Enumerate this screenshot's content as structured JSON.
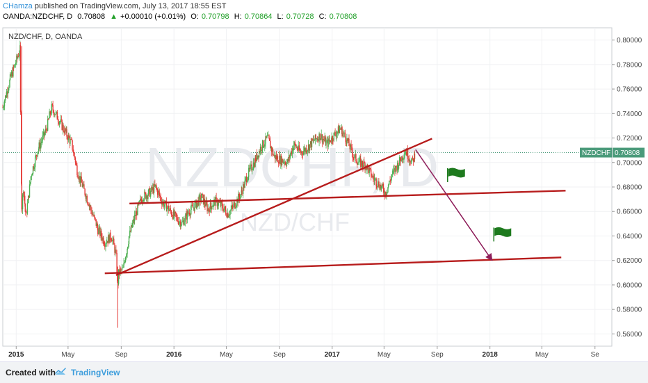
{
  "header": {
    "author": "CHamza",
    "published_text": "published on TradingView.com, July 13, 2017 18:55 EST",
    "symbol": "OANDA:NZDCHF, D",
    "last": "0.70808",
    "change_arrow": "▲",
    "change": "+0.00010 (+0.01%)",
    "o_label": "O:",
    "o": "0.70798",
    "h_label": "H:",
    "h": "0.70864",
    "l_label": "L:",
    "l": "0.70728",
    "c_label": "C:",
    "c": "0.70808"
  },
  "chart_title": "NZD/CHF, D, OANDA",
  "watermark": {
    "symbol": "NZDCHF, D",
    "pair": "NZD/CHF"
  },
  "price_tag": {
    "symbol": "NZDCHF",
    "value": "0.70808"
  },
  "footer": {
    "created_with": "Created with",
    "brand": "TradingView"
  },
  "colors": {
    "up": "#4caf50",
    "down": "#e53935",
    "trendline": "#b71c1c",
    "arrow": "#8e1e5a",
    "flag": "#1e7a1e",
    "price_tag_bg": "#4a9a7a"
  },
  "chart_data": {
    "type": "line",
    "title": "NZD/CHF, D, OANDA",
    "xlabel": "",
    "ylabel": "",
    "ylim": [
      0.55,
      0.81
    ],
    "y_ticks": [
      "0.80000",
      "0.78000",
      "0.76000",
      "0.74000",
      "0.72000",
      "0.70000",
      "0.68000",
      "0.66000",
      "0.64000",
      "0.62000",
      "0.60000",
      "0.58000",
      "0.56000"
    ],
    "x_ticks": [
      "2015",
      "May",
      "Sep",
      "2016",
      "May",
      "Sep",
      "2017",
      "May",
      "Sep",
      "2018",
      "May",
      "Se"
    ],
    "x_ticks_bold": [
      "2015",
      "2016",
      "2017",
      "2018"
    ],
    "current_price": 0.70808,
    "series": [
      {
        "x": [
          "2014-12-01",
          "2014-12-20",
          "2015-01-10",
          "2015-01-14",
          "2015-01-18",
          "2015-01-24",
          "2015-02-05",
          "2015-02-20",
          "2015-03-10",
          "2015-03-25",
          "2015-04-10",
          "2015-04-25",
          "2015-05-10",
          "2015-05-25",
          "2015-06-10",
          "2015-06-25",
          "2015-07-10",
          "2015-07-25",
          "2015-08-10",
          "2015-08-20",
          "2015-08-24",
          "2015-08-27",
          "2015-09-05",
          "2015-09-20",
          "2015-10-05",
          "2015-10-20",
          "2015-11-05",
          "2015-11-20",
          "2015-12-05",
          "2015-12-20",
          "2016-01-05",
          "2016-01-20",
          "2016-02-05",
          "2016-02-20",
          "2016-03-05",
          "2016-03-20",
          "2016-04-05",
          "2016-04-20",
          "2016-05-05",
          "2016-05-20",
          "2016-06-05",
          "2016-06-20",
          "2016-07-05",
          "2016-07-20",
          "2016-08-05",
          "2016-08-20",
          "2016-09-05",
          "2016-09-20",
          "2016-10-05",
          "2016-10-20",
          "2016-11-05",
          "2016-11-20",
          "2016-12-05",
          "2016-12-20",
          "2017-01-05",
          "2017-01-20",
          "2017-02-05",
          "2017-02-20",
          "2017-03-05",
          "2017-03-20",
          "2017-04-05",
          "2017-04-20",
          "2017-05-05",
          "2017-05-20",
          "2017-06-05",
          "2017-06-20",
          "2017-07-05",
          "2017-07-13"
        ],
        "values": [
          0.745,
          0.77,
          0.792,
          0.66,
          0.68,
          0.655,
          0.69,
          0.71,
          0.725,
          0.745,
          0.735,
          0.725,
          0.715,
          0.69,
          0.675,
          0.66,
          0.645,
          0.635,
          0.64,
          0.625,
          0.598,
          0.61,
          0.612,
          0.64,
          0.658,
          0.672,
          0.675,
          0.68,
          0.668,
          0.662,
          0.655,
          0.65,
          0.66,
          0.665,
          0.672,
          0.662,
          0.668,
          0.665,
          0.658,
          0.665,
          0.675,
          0.69,
          0.7,
          0.712,
          0.72,
          0.705,
          0.702,
          0.7,
          0.715,
          0.708,
          0.712,
          0.718,
          0.722,
          0.715,
          0.722,
          0.728,
          0.718,
          0.705,
          0.7,
          0.698,
          0.688,
          0.682,
          0.675,
          0.69,
          0.7,
          0.71,
          0.7,
          0.708
        ]
      }
    ],
    "annotations": [
      {
        "type": "trendline",
        "points": [
          [
            "2015-08-20",
            0.608
          ],
          [
            "2017-08-20",
            0.7195
          ]
        ]
      },
      {
        "type": "trendline",
        "points": [
          [
            "2015-09-20",
            0.6665
          ],
          [
            "2018-06-25",
            0.677
          ]
        ]
      },
      {
        "type": "trendline",
        "points": [
          [
            "2015-07-25",
            0.6095
          ],
          [
            "2018-06-15",
            0.6225
          ]
        ]
      },
      {
        "type": "arrow",
        "points": [
          [
            "2017-07-13",
            0.7105
          ],
          [
            "2018-01-05",
            0.6205
          ]
        ]
      },
      {
        "type": "flag",
        "at": [
          "2017-09-25",
          0.684
        ]
      },
      {
        "type": "flag",
        "at": [
          "2018-01-10",
          0.6355
        ]
      }
    ]
  }
}
